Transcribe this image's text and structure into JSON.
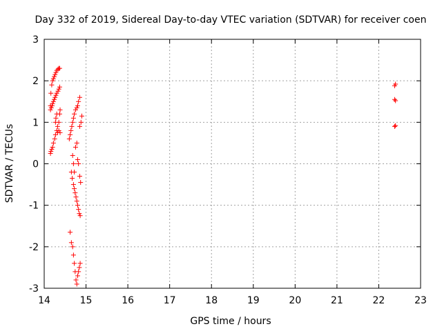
{
  "chart_data": {
    "type": "scatter",
    "title": "Day 332 of 2019, Sidereal Day-to-day VTEC variation (SDTVAR) for receiver coen",
    "xlabel": "GPS time / hours",
    "ylabel": "SDTVAR / TECUs",
    "xlim": [
      14,
      23
    ],
    "ylim": [
      -3,
      3
    ],
    "xticks": [
      "14",
      "15",
      "16",
      "17",
      "18",
      "19",
      "20",
      "21",
      "22",
      "23"
    ],
    "yticks": [
      "-3",
      "-2",
      "-1",
      "0",
      "1",
      "2",
      "3"
    ],
    "grid": true,
    "marker": "+",
    "color": "#ff0000",
    "series": [
      {
        "points": [
          [
            14.15,
            0.25
          ],
          [
            14.16,
            0.3
          ],
          [
            14.18,
            0.35
          ],
          [
            14.2,
            0.4
          ],
          [
            14.22,
            0.5
          ],
          [
            14.25,
            0.6
          ],
          [
            14.27,
            0.7
          ],
          [
            14.3,
            0.8
          ],
          [
            14.32,
            0.9
          ],
          [
            14.35,
            1.0
          ],
          [
            14.37,
            1.2
          ],
          [
            14.38,
            1.3
          ],
          [
            14.15,
            1.3
          ],
          [
            14.17,
            1.35
          ],
          [
            14.19,
            1.4
          ],
          [
            14.2,
            1.45
          ],
          [
            14.22,
            1.5
          ],
          [
            14.24,
            1.55
          ],
          [
            14.26,
            1.6
          ],
          [
            14.28,
            1.65
          ],
          [
            14.3,
            1.7
          ],
          [
            14.33,
            1.75
          ],
          [
            14.35,
            1.8
          ],
          [
            14.37,
            1.85
          ],
          [
            14.15,
            1.4
          ],
          [
            14.16,
            1.7
          ],
          [
            14.18,
            1.9
          ],
          [
            14.2,
            2.0
          ],
          [
            14.22,
            2.05
          ],
          [
            14.24,
            2.1
          ],
          [
            14.26,
            2.15
          ],
          [
            14.28,
            2.2
          ],
          [
            14.3,
            2.25
          ],
          [
            14.33,
            2.28
          ],
          [
            14.35,
            2.3
          ],
          [
            14.37,
            2.3
          ],
          [
            14.27,
            1.0
          ],
          [
            14.28,
            1.1
          ],
          [
            14.3,
            1.2
          ],
          [
            14.32,
            0.75
          ],
          [
            14.35,
            0.8
          ],
          [
            14.38,
            0.75
          ],
          [
            14.6,
            0.6
          ],
          [
            14.62,
            0.7
          ],
          [
            14.64,
            0.8
          ],
          [
            14.66,
            0.9
          ],
          [
            14.68,
            1.0
          ],
          [
            14.7,
            1.1
          ],
          [
            14.72,
            1.2
          ],
          [
            14.75,
            1.3
          ],
          [
            14.78,
            1.35
          ],
          [
            14.8,
            1.4
          ],
          [
            14.82,
            1.5
          ],
          [
            14.85,
            1.6
          ],
          [
            14.65,
            -0.2
          ],
          [
            14.67,
            -0.35
          ],
          [
            14.7,
            -0.5
          ],
          [
            14.72,
            -0.6
          ],
          [
            14.74,
            -0.7
          ],
          [
            14.76,
            -0.8
          ],
          [
            14.78,
            -0.9
          ],
          [
            14.8,
            -1.0
          ],
          [
            14.82,
            -1.1
          ],
          [
            14.84,
            -1.2
          ],
          [
            14.86,
            -1.25
          ],
          [
            14.62,
            -1.65
          ],
          [
            14.65,
            -1.9
          ],
          [
            14.68,
            -2.0
          ],
          [
            14.7,
            -2.2
          ],
          [
            14.72,
            -2.4
          ],
          [
            14.74,
            -2.6
          ],
          [
            14.76,
            -2.8
          ],
          [
            14.78,
            -2.9
          ],
          [
            14.8,
            -2.7
          ],
          [
            14.82,
            -2.6
          ],
          [
            14.84,
            -2.5
          ],
          [
            14.86,
            -2.4
          ],
          [
            14.68,
            0.2
          ],
          [
            14.7,
            0.0
          ],
          [
            14.72,
            -0.2
          ],
          [
            14.75,
            0.4
          ],
          [
            14.78,
            0.5
          ],
          [
            14.8,
            0.1
          ],
          [
            14.82,
            0.0
          ],
          [
            14.85,
            -0.3
          ],
          [
            14.87,
            -0.45
          ],
          [
            14.88,
            1.0
          ],
          [
            14.9,
            1.15
          ],
          [
            14.85,
            0.9
          ],
          [
            22.38,
            0.9
          ],
          [
            22.4,
            0.92
          ],
          [
            22.38,
            1.55
          ],
          [
            22.4,
            1.52
          ],
          [
            22.38,
            1.88
          ],
          [
            22.4,
            1.92
          ]
        ]
      }
    ]
  }
}
